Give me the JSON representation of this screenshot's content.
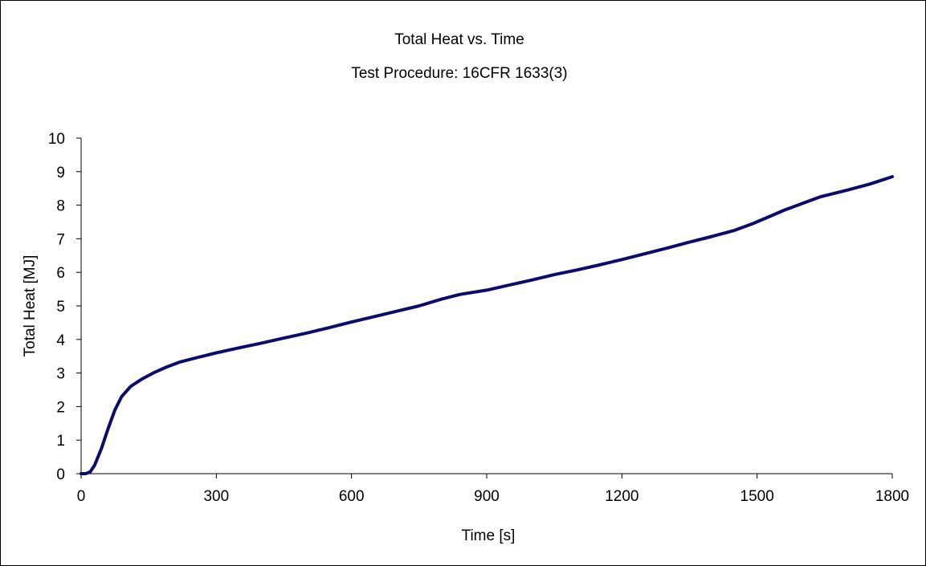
{
  "chart_data": {
    "type": "line",
    "title": "Total Heat  vs. Time",
    "subtitle": "Test Procedure:  16CFR 1633(3)",
    "xlabel": "Time  [s]",
    "ylabel": "Total Heat [MJ]",
    "xlim": [
      0,
      1800
    ],
    "ylim": [
      0,
      10
    ],
    "xticks": [
      0,
      300,
      600,
      900,
      1200,
      1500,
      1800
    ],
    "yticks": [
      0,
      1,
      2,
      3,
      4,
      5,
      6,
      7,
      8,
      9,
      10
    ],
    "xtick_labels": [
      "0",
      "300",
      "600",
      "900",
      "1200",
      "1500",
      "1800"
    ],
    "ytick_labels": [
      "0",
      "1",
      "2",
      "3",
      "4",
      "5",
      "6",
      "7",
      "8",
      "9",
      "10"
    ],
    "grid": false,
    "legend": "none",
    "series_color": "#0b0b6e",
    "series": [
      {
        "x": [
          0,
          10,
          20,
          30,
          45,
          60,
          75,
          90,
          110,
          135,
          160,
          190,
          220,
          260,
          300,
          350,
          400,
          450,
          500,
          550,
          600,
          650,
          700,
          750,
          800,
          840,
          900,
          960,
          1000,
          1050,
          1100,
          1150,
          1200,
          1250,
          1300,
          1350,
          1400,
          1450,
          1490,
          1520,
          1560,
          1600,
          1640,
          1700,
          1750,
          1800
        ],
        "y": [
          0,
          0,
          0.05,
          0.25,
          0.75,
          1.35,
          1.9,
          2.3,
          2.6,
          2.82,
          3.0,
          3.18,
          3.33,
          3.47,
          3.6,
          3.75,
          3.89,
          4.04,
          4.19,
          4.35,
          4.52,
          4.68,
          4.84,
          5.0,
          5.2,
          5.34,
          5.47,
          5.65,
          5.77,
          5.93,
          6.07,
          6.22,
          6.38,
          6.55,
          6.72,
          6.9,
          7.07,
          7.25,
          7.45,
          7.62,
          7.85,
          8.05,
          8.25,
          8.45,
          8.63,
          8.85
        ]
      }
    ]
  }
}
